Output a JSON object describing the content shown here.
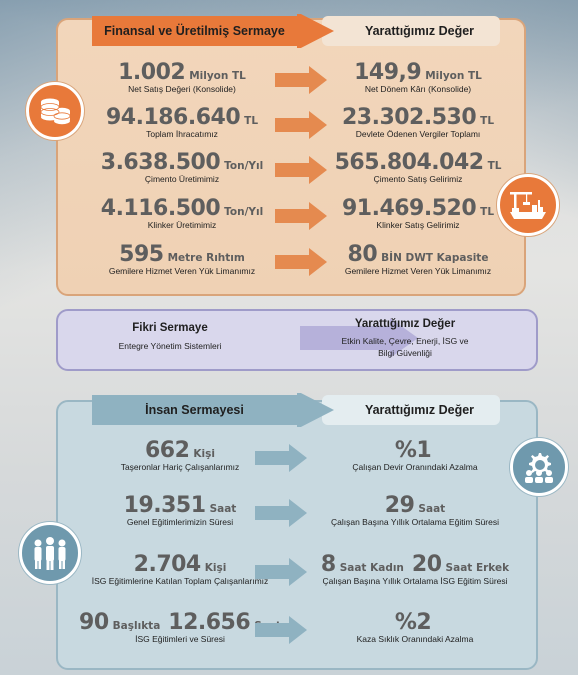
{
  "colors": {
    "financial_accent": "#e8793a",
    "intellectual_accent": "#9c97c8",
    "human_accent": "#6f99ad"
  },
  "financial": {
    "left_header": "Finansal ve Üretilmiş Sermaye",
    "right_header": "Yarattığımız Değer",
    "icon_left": "coins-icon",
    "icon_right": "port-crane-icon",
    "rows": [
      {
        "left": {
          "value": "1.002",
          "unit": "Milyon TL",
          "label": "Net Satış Değeri (Konsolide)"
        },
        "right": {
          "value": "149,9",
          "unit": "Milyon TL",
          "label": "Net Dönem Kârı (Konsolide)"
        }
      },
      {
        "left": {
          "value": "94.186.640",
          "unit": "TL",
          "label": "Toplam İhracatımız"
        },
        "right": {
          "value": "23.302.530",
          "unit": "TL",
          "label": "Devlete Ödenen Vergiler Toplamı"
        }
      },
      {
        "left": {
          "value": "3.638.500",
          "unit": "Ton/Yıl",
          "label": "Çimento Üretimimiz"
        },
        "right": {
          "value": "565.804.042",
          "unit": "TL",
          "label": "Çimento Satış Gelirimiz"
        }
      },
      {
        "left": {
          "value": "4.116.500",
          "unit": "Ton/Yıl",
          "label": "Klinker Üretimimiz"
        },
        "right": {
          "value": "91.469.520",
          "unit": "TL",
          "label": "Klinker Satış Gelirimiz"
        }
      },
      {
        "left": {
          "value": "595",
          "unit": "Metre Rıhtım",
          "label": "Gemilere Hizmet Veren Yük Limanımız"
        },
        "right": {
          "value": "80",
          "unit": "BİN DWT Kapasite",
          "label": "Gemilere Hizmet Veren Yük Limanımız"
        }
      }
    ]
  },
  "intellectual": {
    "left_header": "Fikri Sermaye",
    "left_text": "Entegre Yönetim Sistemleri",
    "right_header": "Yarattığımız Değer",
    "right_text_1": "Etkin Kalite, Çevre, Enerji, İSG ve",
    "right_text_2": "Bilgi Güvenliği"
  },
  "human": {
    "left_header": "İnsan Sermayesi",
    "right_header": "Yarattığımız Değer",
    "icon_left": "people-group-icon",
    "icon_right": "team-gear-icon",
    "rows": [
      {
        "left": {
          "value": "662",
          "unit": "Kişi",
          "label": "Taşeronlar Hariç Çalışanlarımız"
        },
        "right": {
          "value": "%1",
          "unit": "",
          "label": "Çalışan Devir Oranındaki Azalma"
        }
      },
      {
        "left": {
          "value": "19.351",
          "unit": "Saat",
          "label": "Genel Eğitimlerimizin Süresi"
        },
        "right": {
          "value": "29",
          "unit": "Saat",
          "label": "Çalışan Başına Yıllık Ortalama Eğitim Süresi"
        }
      },
      {
        "left": {
          "value": "2.704",
          "unit": "Kişi",
          "label": "İSG Eğitimlerine Katılan Toplam Çalışanlarımız"
        },
        "right": {
          "value": "8",
          "unit": "Saat Kadın",
          "value2": "20",
          "unit2": "Saat Erkek",
          "label": "Çalışan Başına Yıllık Ortalama İSG Eğitim Süresi"
        }
      },
      {
        "left": {
          "value": "90",
          "unit": "Başlıkta",
          "value2": "12.656",
          "unit2": "Saat",
          "label": "İSG Eğitimleri ve Süresi"
        },
        "right": {
          "value": "%2",
          "unit": "",
          "label": "Kaza Sıklık Oranındaki Azalma"
        }
      }
    ]
  }
}
